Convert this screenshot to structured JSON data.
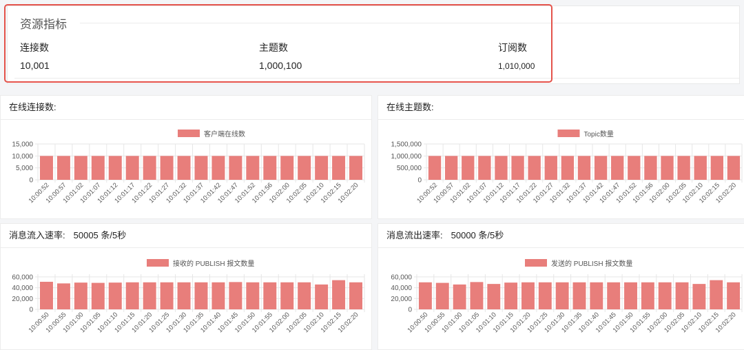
{
  "resources": {
    "title": "资源指标",
    "metrics": [
      {
        "label": "连接数",
        "value": "10,001"
      },
      {
        "label": "主题数",
        "value": "1,000,100"
      },
      {
        "label": "订阅数",
        "value": "1,010,000"
      }
    ]
  },
  "panels": {
    "connections": {
      "title": "在线连接数:"
    },
    "topics": {
      "title": "在线主题数:"
    },
    "msg_in": {
      "title": "消息流入速率:",
      "rate": "50005 条/5秒"
    },
    "msg_out": {
      "title": "消息流出速率:",
      "rate": "50000 条/5秒"
    }
  },
  "colors": {
    "bar": "#e87e7b",
    "highlight": "#e4524a"
  },
  "chart_data": [
    {
      "type": "bar",
      "legend": "客户端在线数",
      "categories": [
        "10:00:52",
        "10:00:57",
        "10:01:02",
        "10:01:07",
        "10:01:12",
        "10:01:17",
        "10:01:22",
        "10:01:27",
        "10:01:32",
        "10:01:37",
        "10:01:42",
        "10:01:47",
        "10:01:52",
        "10:01:56",
        "10:02:00",
        "10:02:05",
        "10:02:10",
        "10:02:15",
        "10:02:20"
      ],
      "series": [
        {
          "name": "客户端在线数",
          "values": [
            10001,
            10001,
            10001,
            10001,
            10001,
            10001,
            10001,
            10001,
            10001,
            10001,
            10001,
            10001,
            10001,
            10001,
            10001,
            10001,
            10001,
            10001,
            10001
          ]
        }
      ],
      "yticks": [
        "15,000",
        "10,000",
        "5,000",
        "0"
      ],
      "ylim": [
        0,
        15000
      ],
      "grid": true
    },
    {
      "type": "bar",
      "legend": "Topic数量",
      "categories": [
        "10:00:52",
        "10:00:57",
        "10:01:02",
        "10:01:07",
        "10:01:12",
        "10:01:17",
        "10:01:22",
        "10:01:27",
        "10:01:32",
        "10:01:37",
        "10:01:42",
        "10:01:47",
        "10:01:52",
        "10:01:56",
        "10:02:00",
        "10:02:05",
        "10:02:10",
        "10:02:15",
        "10:02:20"
      ],
      "series": [
        {
          "name": "Topic数量",
          "values": [
            1000100,
            1000100,
            1000100,
            1000100,
            1000100,
            1000100,
            1000100,
            1000100,
            1000100,
            1000100,
            1000100,
            1000100,
            1000100,
            1000100,
            1000100,
            1000100,
            1000100,
            1000100,
            1000100
          ]
        }
      ],
      "yticks": [
        "1,500,000",
        "1,000,000",
        "500,000",
        "0"
      ],
      "ylim": [
        0,
        1500000
      ],
      "grid": true
    },
    {
      "type": "bar",
      "legend": "接收的 PUBLISH 报文数量",
      "categories": [
        "10:00:50",
        "10:00:55",
        "10:01:00",
        "10:01:05",
        "10:01:10",
        "10:01:15",
        "10:01:20",
        "10:01:25",
        "10:01:30",
        "10:01:35",
        "10:01:40",
        "10:01:45",
        "10:01:50",
        "10:01:55",
        "10:02:00",
        "10:02:05",
        "10:02:10",
        "10:02:15",
        "10:02:20"
      ],
      "series": [
        {
          "name": "接收的 PUBLISH 报文数量",
          "values": [
            51000,
            48000,
            49500,
            49000,
            49500,
            50000,
            50000,
            50000,
            50000,
            50000,
            50000,
            50500,
            50000,
            50000,
            50000,
            50000,
            46000,
            54000,
            50000
          ]
        }
      ],
      "yticks": [
        "60,000",
        "40,000",
        "20,000",
        "0"
      ],
      "ylim": [
        0,
        65000
      ],
      "grid": true
    },
    {
      "type": "bar",
      "legend": "发送的 PUBLISH 报文数量",
      "categories": [
        "10:00:50",
        "10:00:55",
        "10:01:00",
        "10:01:05",
        "10:01:10",
        "10:01:15",
        "10:01:20",
        "10:01:25",
        "10:01:30",
        "10:01:35",
        "10:01:40",
        "10:01:45",
        "10:01:50",
        "10:01:55",
        "10:02:00",
        "10:02:05",
        "10:02:10",
        "10:02:15",
        "10:02:20"
      ],
      "series": [
        {
          "name": "发送的 PUBLISH 报文数量",
          "values": [
            50000,
            49000,
            46000,
            50500,
            47000,
            49500,
            50000,
            50000,
            50000,
            50000,
            50000,
            50000,
            50000,
            50000,
            50000,
            50000,
            47000,
            54000,
            50000
          ]
        }
      ],
      "yticks": [
        "60,000",
        "40,000",
        "20,000",
        "0"
      ],
      "ylim": [
        0,
        65000
      ],
      "grid": true
    }
  ]
}
